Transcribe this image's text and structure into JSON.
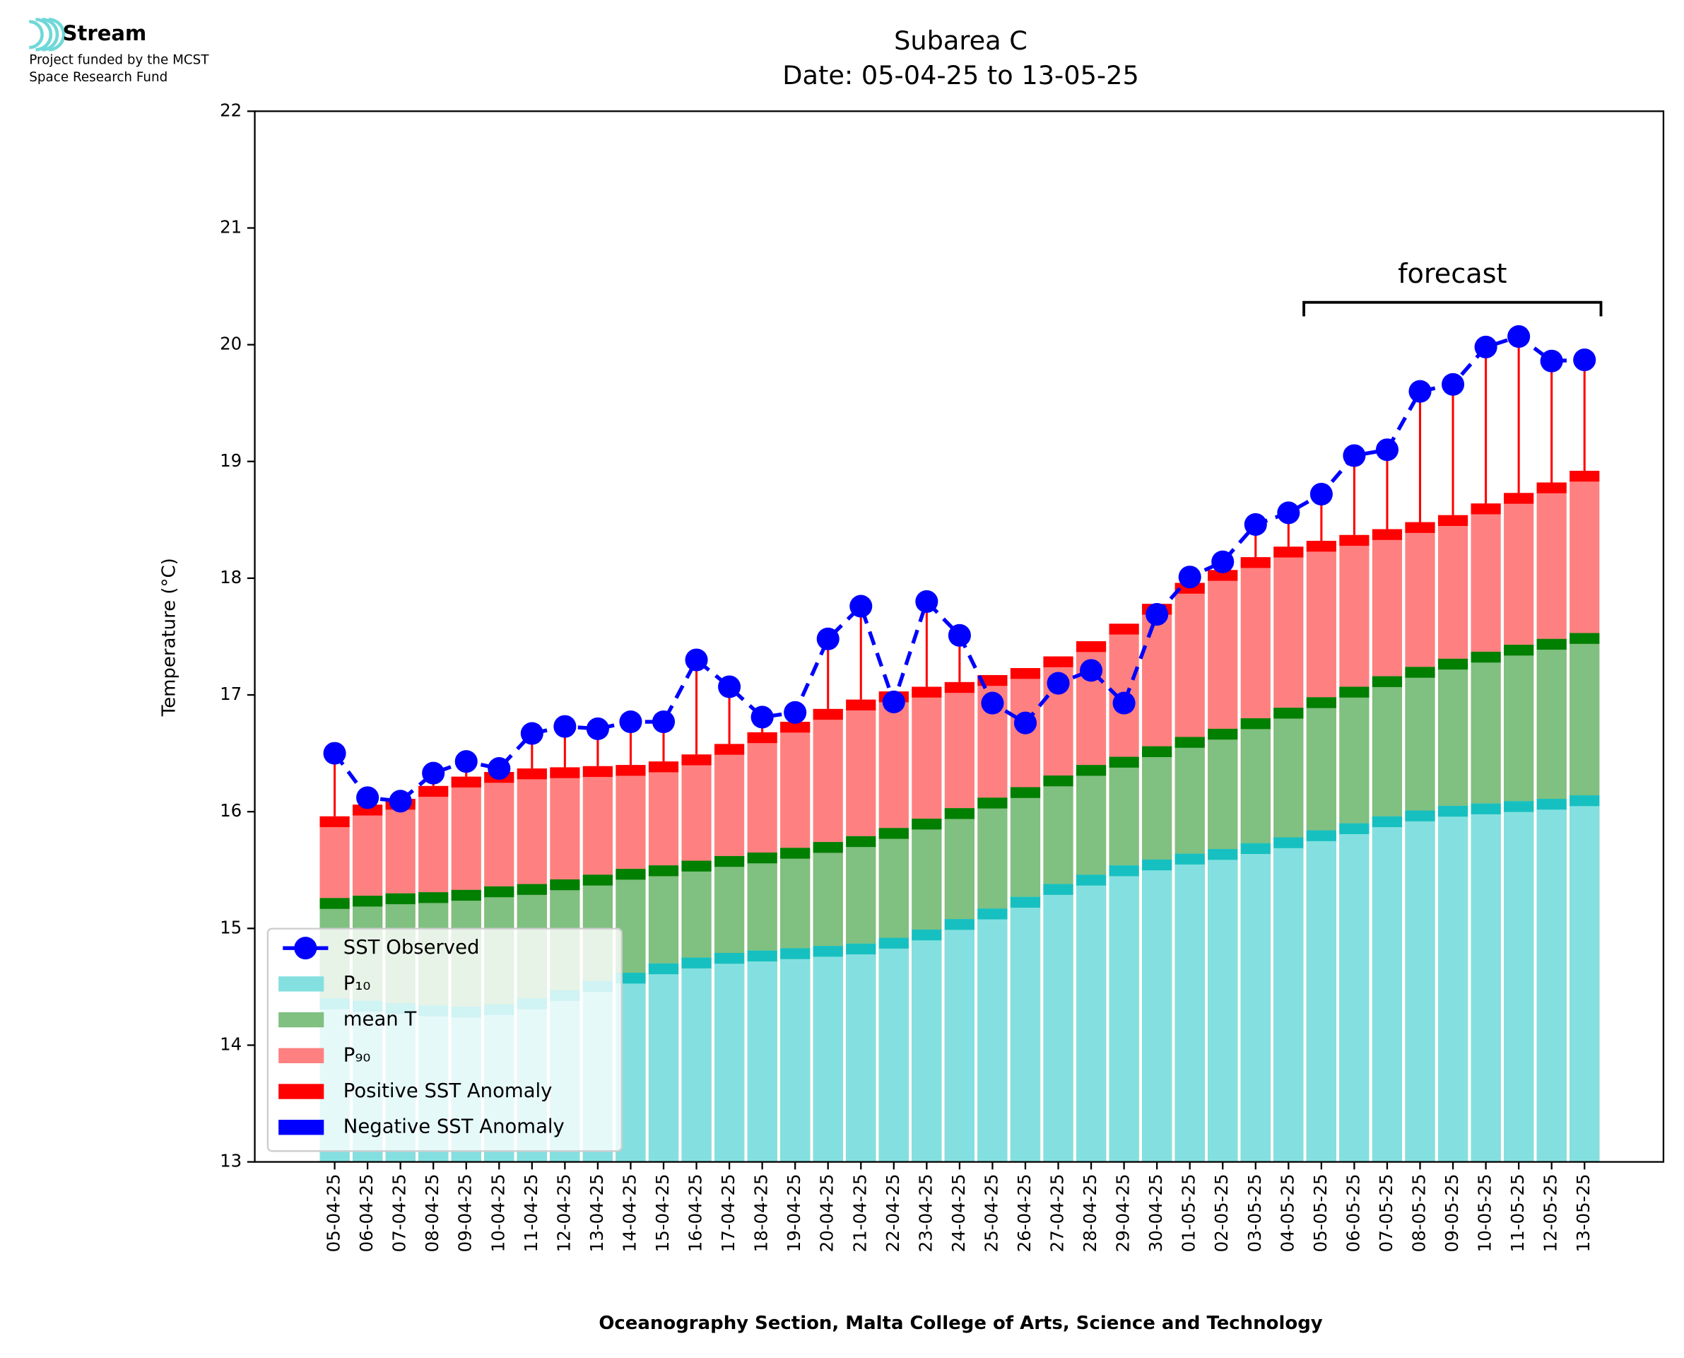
{
  "logo": {
    "name": "Stream",
    "lines": [
      "Project funded by the MCST",
      "Space Research Fund"
    ]
  },
  "chart_data": {
    "type": "bar",
    "title": [
      "Subarea C",
      "Date: 05-04-25 to 13-05-25"
    ],
    "ylabel": "Temperature (°C)",
    "xlabel": "Oceanography Section, Malta College of Arts, Science and Technology",
    "annotation": "forecast",
    "categories": [
      "05-04-25",
      "06-04-25",
      "07-04-25",
      "08-04-25",
      "09-04-25",
      "10-04-25",
      "11-04-25",
      "12-04-25",
      "13-04-25",
      "14-04-25",
      "15-04-25",
      "16-04-25",
      "17-04-25",
      "18-04-25",
      "19-04-25",
      "20-04-25",
      "21-04-25",
      "22-04-25",
      "23-04-25",
      "24-04-25",
      "25-04-25",
      "26-04-25",
      "27-04-25",
      "28-04-25",
      "29-04-25",
      "30-04-25",
      "01-05-25",
      "02-05-25",
      "03-05-25",
      "04-05-25",
      "05-05-25",
      "06-05-25",
      "07-05-25",
      "08-05-25",
      "09-05-25",
      "10-05-25",
      "11-05-25",
      "12-05-25",
      "13-05-25"
    ],
    "series": [
      {
        "name": "P₁₀",
        "color": "#84e0e0",
        "band_color": "#17c0c0",
        "values": [
          14.4,
          14.38,
          14.36,
          14.34,
          14.33,
          14.35,
          14.4,
          14.47,
          14.55,
          14.62,
          14.7,
          14.75,
          14.79,
          14.81,
          14.83,
          14.85,
          14.87,
          14.92,
          14.99,
          15.08,
          15.17,
          15.27,
          15.38,
          15.46,
          15.54,
          15.59,
          15.64,
          15.68,
          15.73,
          15.78,
          15.84,
          15.9,
          15.96,
          16.01,
          16.05,
          16.07,
          16.09,
          16.11,
          16.14
        ]
      },
      {
        "name": "mean T",
        "color": "#80c080",
        "band_color": "#007f00",
        "values": [
          15.26,
          15.28,
          15.3,
          15.31,
          15.33,
          15.36,
          15.38,
          15.42,
          15.46,
          15.51,
          15.54,
          15.58,
          15.62,
          15.65,
          15.69,
          15.74,
          15.79,
          15.86,
          15.94,
          16.03,
          16.12,
          16.21,
          16.31,
          16.4,
          16.47,
          16.56,
          16.64,
          16.71,
          16.8,
          16.89,
          16.98,
          17.07,
          17.16,
          17.24,
          17.31,
          17.37,
          17.43,
          17.48,
          17.53
        ]
      },
      {
        "name": "P₉₀",
        "color": "#ff8080",
        "band_color": "#ff0000",
        "values": [
          15.96,
          16.06,
          16.11,
          16.22,
          16.3,
          16.34,
          16.37,
          16.38,
          16.39,
          16.4,
          16.43,
          16.49,
          16.58,
          16.68,
          16.77,
          16.88,
          16.96,
          17.03,
          17.07,
          17.11,
          17.17,
          17.23,
          17.33,
          17.46,
          17.61,
          17.78,
          17.96,
          18.07,
          18.18,
          18.27,
          18.32,
          18.37,
          18.42,
          18.48,
          18.54,
          18.64,
          18.73,
          18.82,
          18.92
        ]
      },
      {
        "name": "SST Observed",
        "color": "#0000ff",
        "type": "line",
        "values": [
          16.5,
          16.12,
          16.09,
          16.33,
          16.43,
          16.37,
          16.67,
          16.73,
          16.71,
          16.77,
          16.77,
          17.3,
          17.07,
          16.81,
          16.85,
          17.48,
          17.76,
          16.94,
          17.8,
          17.51,
          16.93,
          16.76,
          17.1,
          17.21,
          16.93,
          17.69,
          18.01,
          18.14,
          18.46,
          18.56,
          18.72,
          19.05,
          19.1,
          19.6,
          19.66,
          19.98,
          20.07,
          19.86,
          19.87
        ]
      }
    ],
    "anomalies": [
      {
        "name": "Positive SST Anomaly",
        "color": "#ff0000"
      },
      {
        "name": "Negative SST Anomaly",
        "color": "#0000ff"
      }
    ],
    "ylim": [
      13,
      22
    ],
    "yticks": [
      13,
      14,
      15,
      16,
      17,
      18,
      19,
      20,
      21,
      22
    ],
    "legend": "lower left"
  }
}
